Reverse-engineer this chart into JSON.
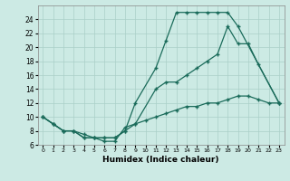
{
  "xlabel": "Humidex (Indice chaleur)",
  "bg_color": "#cceae4",
  "grid_color": "#aacfc8",
  "line_color": "#1a6b5a",
  "xlim": [
    -0.5,
    23.5
  ],
  "ylim": [
    6,
    26
  ],
  "yticks": [
    6,
    8,
    10,
    12,
    14,
    16,
    18,
    20,
    22,
    24
  ],
  "xticks": [
    0,
    1,
    2,
    3,
    4,
    5,
    6,
    7,
    8,
    9,
    10,
    11,
    12,
    13,
    14,
    15,
    16,
    17,
    18,
    19,
    20,
    21,
    22,
    23
  ],
  "line1_x": [
    0,
    1,
    2,
    3,
    4,
    5,
    6,
    7,
    8,
    9,
    11,
    12,
    13,
    14,
    15,
    16,
    17,
    18,
    19,
    23
  ],
  "line1_y": [
    10,
    9,
    8,
    8,
    7,
    7,
    7,
    7,
    8,
    12,
    17,
    21,
    25,
    25,
    25,
    25,
    25,
    25,
    23,
    12
  ],
  "line2_x": [
    0,
    1,
    2,
    3,
    4,
    5,
    6,
    7,
    8,
    9,
    11,
    12,
    13,
    14,
    15,
    16,
    17,
    18,
    19,
    20,
    21,
    23
  ],
  "line2_y": [
    10,
    9,
    8,
    8,
    7,
    7,
    7,
    7,
    8,
    9,
    14,
    15,
    15,
    16,
    17,
    18,
    19,
    23,
    20.5,
    20.5,
    17.5,
    12
  ],
  "line3_x": [
    0,
    1,
    2,
    3,
    4,
    5,
    6,
    7,
    8,
    9,
    10,
    11,
    12,
    13,
    14,
    15,
    16,
    17,
    18,
    19,
    20,
    21,
    22,
    23
  ],
  "line3_y": [
    10,
    9,
    8,
    8,
    7.5,
    7,
    6.5,
    6.5,
    8.5,
    9,
    9.5,
    10,
    10.5,
    11,
    11.5,
    11.5,
    12,
    12,
    12.5,
    13,
    13,
    12.5,
    12,
    12
  ]
}
